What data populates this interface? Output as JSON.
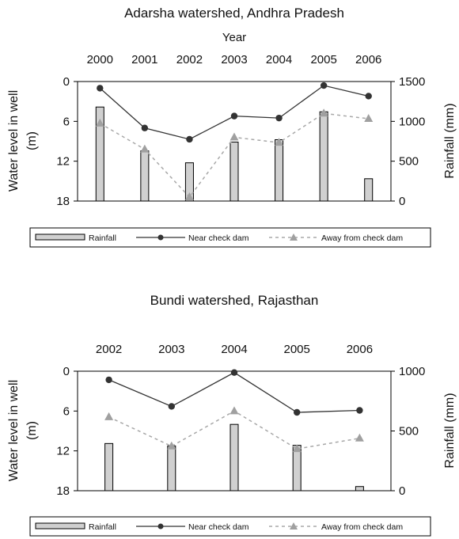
{
  "chart_data": [
    {
      "type": "bar+line",
      "title": "Adarsha  watershed, Andhra Pradesh",
      "xlabel": "Year",
      "ylabel_left": "Water level in well (m)",
      "ylabel_right": "Rainfall (mm)",
      "categories": [
        "2000",
        "2001",
        "2002",
        "2003",
        "2004",
        "2005",
        "2006"
      ],
      "y_left": {
        "min": 0,
        "max": 18,
        "ticks": [
          0,
          6,
          12,
          18
        ],
        "inverted": true
      },
      "y_right": {
        "min": 0,
        "max": 1500,
        "ticks": [
          0,
          500,
          1000,
          1500
        ]
      },
      "bars": {
        "name": "Rainfall",
        "axis": "right",
        "values": [
          1180,
          630,
          480,
          740,
          770,
          1120,
          280
        ]
      },
      "series": [
        {
          "name": "Near check dam",
          "axis": "left",
          "marker": "circle",
          "values": [
            1.0,
            7.0,
            8.7,
            5.2,
            5.5,
            0.6,
            2.2
          ]
        },
        {
          "name": "Away from check dam",
          "axis": "left",
          "marker": "triangle",
          "values": [
            6.3,
            10.2,
            17.4,
            8.4,
            9.2,
            4.8,
            5.6
          ]
        }
      ],
      "legend": [
        "Rainfall",
        "Near check dam",
        "Away from check dam"
      ],
      "legend_position": "bottom"
    },
    {
      "type": "bar+line",
      "title": "Bundi watershed, Rajasthan",
      "xlabel": "",
      "ylabel_left": "Water level in well (m)",
      "ylabel_right": "Rainfall (mm)",
      "categories": [
        "2002",
        "2003",
        "2004",
        "2005",
        "2006"
      ],
      "y_left": {
        "min": 0,
        "max": 18,
        "ticks": [
          0,
          6,
          12,
          18
        ],
        "inverted": true
      },
      "y_right": {
        "min": 0,
        "max": 1000,
        "ticks": [
          0,
          500,
          1000
        ]
      },
      "bars": {
        "name": "Rainfall",
        "axis": "right",
        "values": [
          395,
          375,
          555,
          380,
          35
        ]
      },
      "series": [
        {
          "name": "Near check dam",
          "axis": "left",
          "marker": "circle",
          "values": [
            1.3,
            5.3,
            0.2,
            6.2,
            5.9
          ]
        },
        {
          "name": "Away from check dam",
          "axis": "left",
          "marker": "triangle",
          "values": [
            6.9,
            11.3,
            6.0,
            11.7,
            10.1
          ]
        }
      ],
      "legend": [
        "Rainfall",
        "Near check dam",
        "Away from check dam"
      ],
      "legend_position": "bottom"
    }
  ],
  "colors": {
    "bar_fill": "#d0d0d0",
    "bar_stroke": "#000000",
    "near_line": "#333333",
    "away_line": "#a8a8a8",
    "away_marker": "#a0a0a0"
  }
}
